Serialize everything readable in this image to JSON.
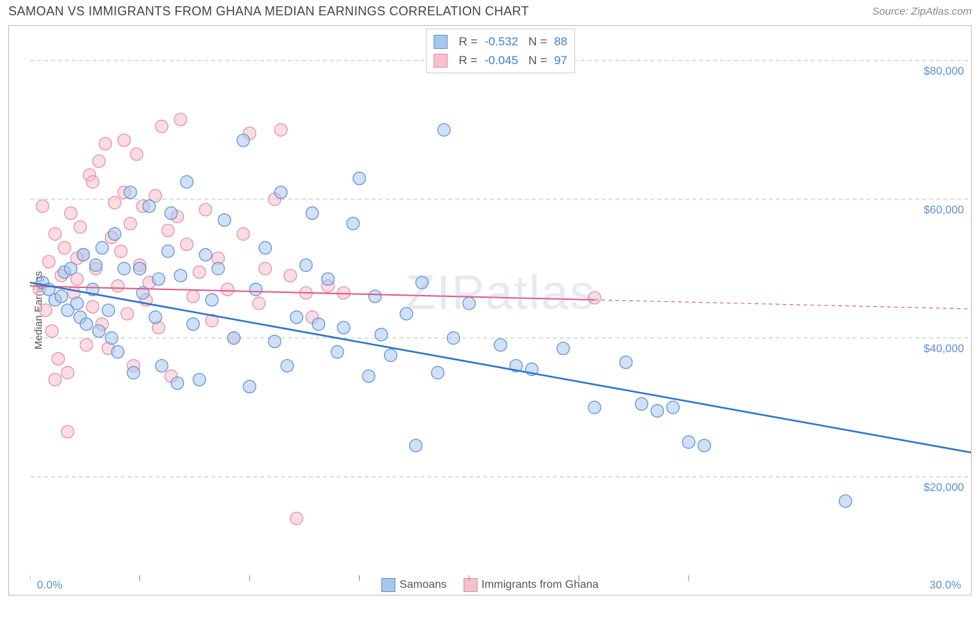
{
  "header": {
    "title": "SAMOAN VS IMMIGRANTS FROM GHANA MEDIAN EARNINGS CORRELATION CHART",
    "source": "Source: ZipAtlas.com"
  },
  "watermark": "ZIPatlas",
  "chart": {
    "type": "scatter",
    "ylabel": "Median Earnings",
    "xlim": [
      0,
      30
    ],
    "ylim": [
      5000,
      85000
    ],
    "y_gridlines": [
      20000,
      40000,
      60000,
      80000
    ],
    "y_tick_labels": [
      "$20,000",
      "$40,000",
      "$60,000",
      "$80,000"
    ],
    "x_tick_positions": [
      0,
      3.5,
      7,
      10.5,
      14,
      17.5,
      21
    ],
    "x_axis_left_label": "0.0%",
    "x_axis_right_label": "30.0%",
    "background_color": "#ffffff",
    "grid_color": "#dddddd",
    "marker_radius": 9,
    "marker_opacity": 0.55,
    "series": [
      {
        "name": "Samoans",
        "color_fill": "#a9c6ec",
        "color_stroke": "#5b8fd6",
        "R": "-0.532",
        "N": "88",
        "trend": {
          "y_at_x0": 48000,
          "y_at_x30": 23500,
          "color": "#2f74d0",
          "width": 2.5
        },
        "points": [
          [
            0.4,
            48000
          ],
          [
            0.6,
            47000
          ],
          [
            0.8,
            45500
          ],
          [
            1.0,
            46000
          ],
          [
            1.1,
            49500
          ],
          [
            1.2,
            44000
          ],
          [
            1.3,
            50000
          ],
          [
            1.5,
            45000
          ],
          [
            1.6,
            43000
          ],
          [
            1.7,
            52000
          ],
          [
            1.8,
            42000
          ],
          [
            2.0,
            47000
          ],
          [
            2.1,
            50500
          ],
          [
            2.2,
            41000
          ],
          [
            2.3,
            53000
          ],
          [
            2.5,
            44000
          ],
          [
            2.6,
            40000
          ],
          [
            2.7,
            55000
          ],
          [
            2.8,
            38000
          ],
          [
            3.0,
            50000
          ],
          [
            3.2,
            61000
          ],
          [
            3.3,
            35000
          ],
          [
            3.5,
            50000
          ],
          [
            3.6,
            46500
          ],
          [
            3.8,
            59000
          ],
          [
            4.0,
            43000
          ],
          [
            4.1,
            48500
          ],
          [
            4.2,
            36000
          ],
          [
            4.4,
            52500
          ],
          [
            4.5,
            58000
          ],
          [
            4.7,
            33500
          ],
          [
            4.8,
            49000
          ],
          [
            5.0,
            62500
          ],
          [
            5.2,
            42000
          ],
          [
            5.4,
            34000
          ],
          [
            5.6,
            52000
          ],
          [
            5.8,
            45500
          ],
          [
            6.0,
            50000
          ],
          [
            6.2,
            57000
          ],
          [
            6.5,
            40000
          ],
          [
            6.8,
            68500
          ],
          [
            7.0,
            33000
          ],
          [
            7.2,
            47000
          ],
          [
            7.5,
            53000
          ],
          [
            7.8,
            39500
          ],
          [
            8.0,
            61000
          ],
          [
            8.2,
            36000
          ],
          [
            8.5,
            43000
          ],
          [
            8.8,
            50500
          ],
          [
            9.0,
            58000
          ],
          [
            9.2,
            42000
          ],
          [
            9.5,
            48500
          ],
          [
            9.8,
            38000
          ],
          [
            10.0,
            41500
          ],
          [
            10.3,
            56500
          ],
          [
            10.5,
            63000
          ],
          [
            10.8,
            34500
          ],
          [
            11.0,
            46000
          ],
          [
            11.2,
            40500
          ],
          [
            11.5,
            37500
          ],
          [
            12.0,
            43500
          ],
          [
            12.3,
            24500
          ],
          [
            12.5,
            48000
          ],
          [
            13.0,
            35000
          ],
          [
            13.2,
            70000
          ],
          [
            13.5,
            40000
          ],
          [
            14.0,
            45000
          ],
          [
            15.0,
            39000
          ],
          [
            15.5,
            36000
          ],
          [
            16.0,
            35500
          ],
          [
            17.0,
            38500
          ],
          [
            18.0,
            30000
          ],
          [
            19.0,
            36500
          ],
          [
            19.5,
            30500
          ],
          [
            20.0,
            29500
          ],
          [
            20.5,
            30000
          ],
          [
            21.0,
            25000
          ],
          [
            21.5,
            24500
          ],
          [
            26.0,
            16500
          ]
        ]
      },
      {
        "name": "Immigrants from Ghana",
        "color_fill": "#f4c1cc",
        "color_stroke": "#e68aa3",
        "R": "-0.045",
        "N": "97",
        "trend": {
          "y_at_x0": 47500,
          "y_at_x18": 45500,
          "y_at_x30": 44200,
          "solid_until_x": 18,
          "color": "#e05a8a",
          "width": 2
        },
        "points": [
          [
            0.3,
            47000
          ],
          [
            0.4,
            59000
          ],
          [
            0.5,
            44000
          ],
          [
            0.6,
            51000
          ],
          [
            0.7,
            41000
          ],
          [
            0.8,
            55000
          ],
          [
            0.9,
            37000
          ],
          [
            1.0,
            49000
          ],
          [
            1.1,
            53000
          ],
          [
            1.2,
            35000
          ],
          [
            1.3,
            58000
          ],
          [
            1.4,
            46500
          ],
          [
            1.5,
            48500
          ],
          [
            1.6,
            56000
          ],
          [
            1.7,
            52000
          ],
          [
            1.8,
            39000
          ],
          [
            1.9,
            63500
          ],
          [
            2.0,
            44500
          ],
          [
            2.1,
            50000
          ],
          [
            2.2,
            65500
          ],
          [
            2.3,
            42000
          ],
          [
            2.4,
            68000
          ],
          [
            2.5,
            38500
          ],
          [
            2.6,
            54500
          ],
          [
            2.7,
            59500
          ],
          [
            2.8,
            47500
          ],
          [
            2.9,
            52500
          ],
          [
            3.0,
            61000
          ],
          [
            3.1,
            43500
          ],
          [
            3.2,
            56500
          ],
          [
            3.3,
            36000
          ],
          [
            3.4,
            66500
          ],
          [
            3.5,
            50500
          ],
          [
            3.6,
            59000
          ],
          [
            3.7,
            45500
          ],
          [
            3.8,
            48000
          ],
          [
            4.0,
            60500
          ],
          [
            4.1,
            41500
          ],
          [
            4.2,
            70500
          ],
          [
            4.4,
            55500
          ],
          [
            4.5,
            34500
          ],
          [
            4.7,
            57500
          ],
          [
            4.8,
            71500
          ],
          [
            5.0,
            53500
          ],
          [
            5.2,
            46000
          ],
          [
            5.4,
            49500
          ],
          [
            5.6,
            58500
          ],
          [
            5.8,
            42500
          ],
          [
            6.0,
            51500
          ],
          [
            6.3,
            47000
          ],
          [
            6.5,
            40000
          ],
          [
            6.8,
            55000
          ],
          [
            7.0,
            69500
          ],
          [
            7.3,
            45000
          ],
          [
            7.5,
            50000
          ],
          [
            7.8,
            60000
          ],
          [
            8.0,
            70000
          ],
          [
            8.3,
            49000
          ],
          [
            8.5,
            14000
          ],
          [
            8.8,
            46500
          ],
          [
            9.0,
            43000
          ],
          [
            9.5,
            47500
          ],
          [
            10.0,
            46500
          ],
          [
            1.2,
            26500
          ],
          [
            0.8,
            34000
          ],
          [
            1.5,
            51500
          ],
          [
            2.0,
            62500
          ],
          [
            3.0,
            68500
          ],
          [
            18.0,
            45800
          ]
        ]
      }
    ],
    "bottom_legend": [
      {
        "swatch_fill": "#a9c6ec",
        "swatch_stroke": "#5b8fd6",
        "label": "Samoans"
      },
      {
        "swatch_fill": "#f4c1cc",
        "swatch_stroke": "#e68aa3",
        "label": "Immigrants from Ghana"
      }
    ]
  }
}
